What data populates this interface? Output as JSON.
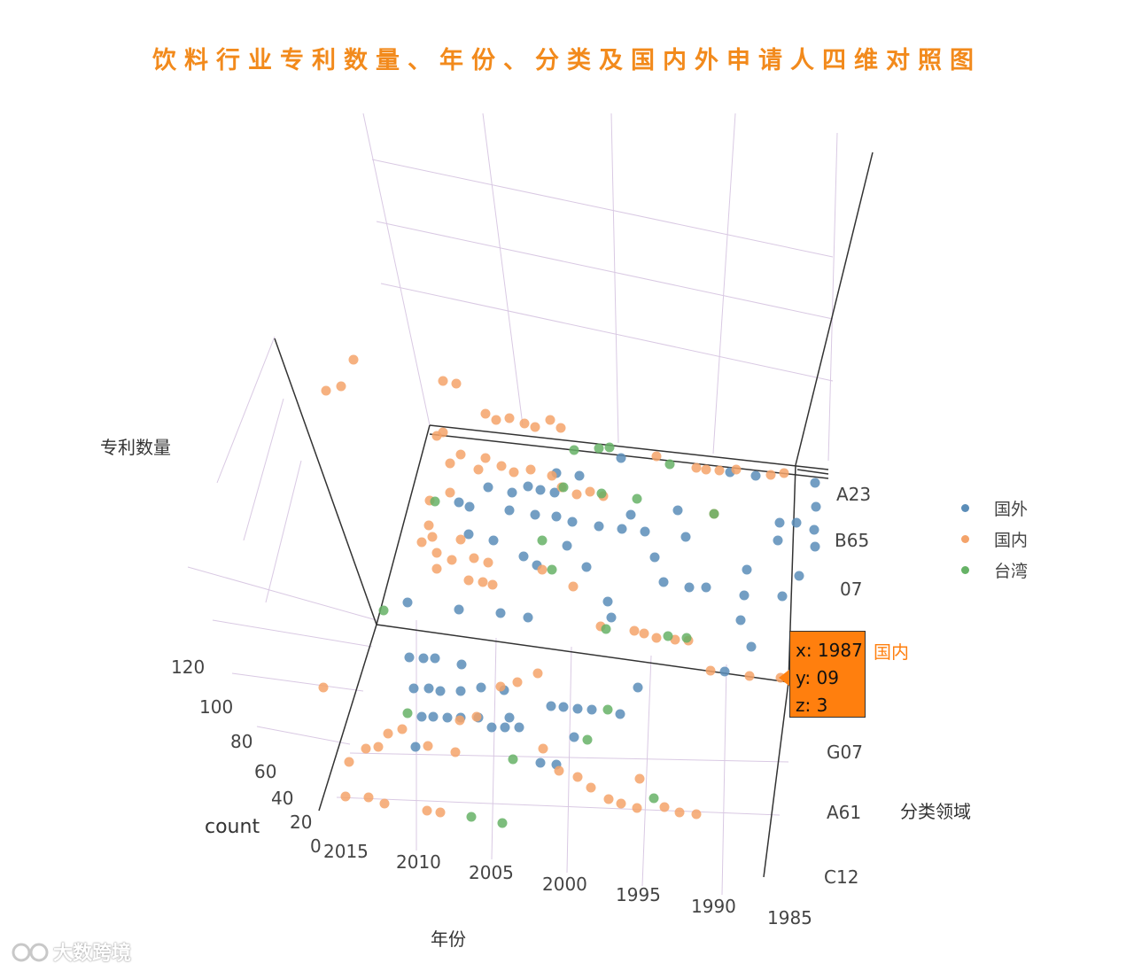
{
  "chart_data": {
    "type": "scatter",
    "title": "饮料行业专利数量、年份、分类及国内外申请人四维对照图",
    "xlabel": "年份",
    "ylabel": "分类领域",
    "zlabel": "专利数量",
    "colorbar_label": "count",
    "x_ticks": [
      "2015",
      "2010",
      "2005",
      "2000",
      "1995",
      "1990",
      "1985"
    ],
    "y_ticks": [
      "A23",
      "B65",
      "07",
      "G07",
      "A61",
      "C12"
    ],
    "z_ticks": [
      "120",
      "100",
      "80",
      "60",
      "40",
      "20",
      "0"
    ],
    "grid": true,
    "legend_position": "right",
    "series": [
      {
        "name": "国外",
        "color": "#5b8db8"
      },
      {
        "name": "国内",
        "color": "#f4a36a"
      },
      {
        "name": "台湾",
        "color": "#66b266"
      }
    ],
    "hover": {
      "x": "1987",
      "y": "09",
      "z": "3",
      "series": "国内"
    }
  },
  "tooltip": {
    "x_line": "x: 1987",
    "y_line": "y: 09",
    "z_line": "z: 3",
    "series": "国内"
  },
  "watermark": "大数跨境",
  "colors": {
    "title": "#f28a1c",
    "tooltip_bg": "#ff7f0e",
    "grid": "#d9c9e3",
    "axis": "#333333"
  }
}
